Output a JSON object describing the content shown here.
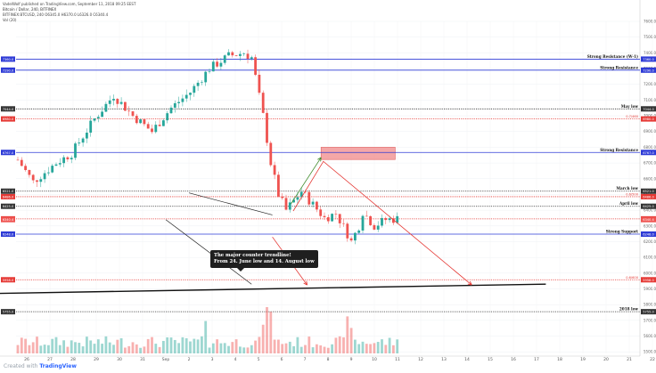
{
  "header": {
    "publisher": "VadelWolf",
    "published": "published on TradingView.com, September 11, 2018 09:25 EEST",
    "symbol_line": "BITFINEX:BTCUSD, 240  O6345.0  H6370.0  L6326.0  C6340.4",
    "vol_line": "Vol (20)"
  },
  "watermark": {
    "created_with": "Created with",
    "brand": "TradingView"
  },
  "colors": {
    "up": "#26a69a",
    "down": "#ef5350",
    "blue_level": "#2e3bd6",
    "red_level": "#e53935",
    "black_level": "#333333",
    "bull_arrow": "#3d8a2a",
    "bear_arrow": "#e53935",
    "zone": "#f08a8a"
  },
  "callout": {
    "line1": "The major counter trendline!",
    "line2": "From 24. June low and 14. August low"
  },
  "chart_data": {
    "type": "candlestick",
    "title": "Bitcoin / Dollar, 240, BITFINEX",
    "y_range": [
      5490,
      7600
    ],
    "y_ticks": [
      "7600.0",
      "7500.0",
      "7400.0",
      "7300.0",
      "7200.0",
      "7100.0",
      "7000.0",
      "6900.0",
      "6800.0",
      "6700.0",
      "6600.0",
      "6500.0",
      "6400.0",
      "6300.0",
      "6200.0",
      "6100.0",
      "6000.0",
      "5900.0",
      "5800.0",
      "5700.0",
      "5600.0",
      "5500.0"
    ],
    "x_ticks": [
      "26",
      "27",
      "28",
      "29",
      "30",
      "31",
      "Sep",
      "2",
      "3",
      "4",
      "5",
      "6",
      "7",
      "8",
      "9",
      "10",
      "11",
      "12",
      "13",
      "14",
      "15",
      "16",
      "17",
      "18",
      "19",
      "20",
      "21",
      "22"
    ],
    "levels": [
      {
        "label": "Strong Resistance (W-1)",
        "value": 7360.0,
        "color": "#2e3bd6",
        "style": "solid"
      },
      {
        "label": "Strong Resistance",
        "value": 7290.0,
        "color": "#2e3bd6",
        "style": "solid"
      },
      {
        "label": "May low",
        "value": 7044.0,
        "color": "#333333",
        "style": "dotted"
      },
      {
        "label": "",
        "value": 6980.0,
        "color": "#e53935",
        "style": "dotted",
        "tag": "0.7/460"
      },
      {
        "label": "Strong Resistance",
        "value": 6767.0,
        "color": "#2e3bd6",
        "style": "solid"
      },
      {
        "label": "March low",
        "value": 6521.0,
        "color": "#333333",
        "style": "dotted"
      },
      {
        "label": "",
        "value": 6486.0,
        "color": "#e53935",
        "style": "dotted",
        "tag": "0.6/500"
      },
      {
        "label": "April low",
        "value": 6425.0,
        "color": "#333333",
        "style": "dotted"
      },
      {
        "label": "",
        "value": 6345.0,
        "color": "#e53935",
        "style": "dotted"
      },
      {
        "label": "Strong Support",
        "value": 6248.0,
        "color": "#2e3bd6",
        "style": "solid"
      },
      {
        "label": "",
        "value": 5958.0,
        "color": "#e53935",
        "style": "dotted",
        "tag": "0.6/600"
      },
      {
        "label": "2018 low",
        "value": 5755.0,
        "color": "#333333",
        "style": "dotted"
      }
    ],
    "price_tags": [
      {
        "value": 7360.0,
        "text": "7360.0",
        "color": "#2e3bd6"
      },
      {
        "value": 7290.0,
        "text": "7290.0",
        "color": "#2e3bd6"
      },
      {
        "value": 7044.0,
        "text": "7044.0",
        "color": "#333333"
      },
      {
        "value": 6980.0,
        "text": "6980.0",
        "color": "#e53935"
      },
      {
        "value": 6767.0,
        "text": "6767.0",
        "color": "#2e3bd6"
      },
      {
        "value": 6521.0,
        "text": "6521.0",
        "color": "#333333"
      },
      {
        "value": 6486.0,
        "text": "6486.0",
        "color": "#e53935"
      },
      {
        "value": 6425.0,
        "text": "6425.0",
        "color": "#333333"
      },
      {
        "value": 6345.0,
        "text": "6345.0",
        "color": "#e53935"
      },
      {
        "value": 6340.4,
        "text": "6340.4",
        "color": "#ef5350"
      },
      {
        "value": 6248.0,
        "text": "6248.0",
        "color": "#2e3bd6"
      },
      {
        "value": 5958.0,
        "text": "5958.0",
        "color": "#e53935"
      },
      {
        "value": 5755.0,
        "text": "5755.0",
        "color": "#333333"
      }
    ],
    "waypoints": [
      [
        0,
        6720
      ],
      [
        4,
        6580
      ],
      [
        10,
        6700
      ],
      [
        14,
        6760
      ],
      [
        20,
        6980
      ],
      [
        25,
        7130
      ],
      [
        30,
        7000
      ],
      [
        35,
        6900
      ],
      [
        40,
        7050
      ],
      [
        45,
        7150
      ],
      [
        50,
        7300
      ],
      [
        55,
        7380
      ],
      [
        59,
        7400
      ],
      [
        61,
        7370
      ],
      [
        64,
        7000
      ],
      [
        66,
        6700
      ],
      [
        68,
        6500
      ],
      [
        70,
        6400
      ],
      [
        74,
        6520
      ],
      [
        80,
        6350
      ],
      [
        83,
        6380
      ],
      [
        86,
        6250
      ],
      [
        87,
        6200
      ],
      [
        89,
        6300
      ],
      [
        90,
        6390
      ],
      [
        93,
        6300
      ],
      [
        96,
        6340
      ],
      [
        99,
        6345
      ]
    ],
    "volume_spikes": [
      [
        49,
        0.7
      ],
      [
        64,
        0.62
      ],
      [
        65,
        1.0
      ],
      [
        66,
        0.9
      ],
      [
        86,
        0.8
      ],
      [
        87,
        0.55
      ]
    ],
    "annotations": {
      "channel_upper": [
        [
          7.0,
          6510
        ],
        [
          10.6,
          6370
        ]
      ],
      "channel_lower": [
        [
          6.0,
          6340
        ],
        [
          9.7,
          5930
        ]
      ],
      "major_trendline": [
        [
          -1.8,
          5870
        ],
        [
          22.4,
          5930
        ]
      ],
      "resistance_zone": {
        "x": [
          12.7,
          15.9
        ],
        "y": [
          6722,
          6800
        ]
      },
      "bull_arrow": [
        [
          11.4,
          6440
        ],
        [
          12.7,
          6735
        ]
      ],
      "bear_arrow_1": [
        [
          11.5,
          6395
        ],
        [
          12.8,
          6710
        ],
        [
          19.2,
          5925
        ]
      ],
      "bear_arrow_2": [
        [
          10.6,
          6230
        ],
        [
          12.1,
          5925
        ]
      ]
    }
  }
}
